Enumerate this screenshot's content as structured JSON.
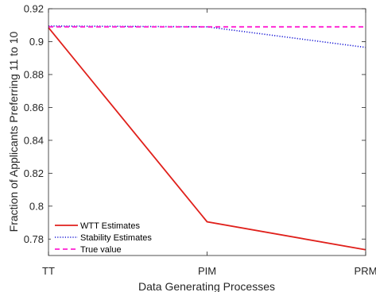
{
  "chart_data": {
    "type": "line",
    "title": "",
    "xlabel": "Data Generating Processes",
    "ylabel": "Fraction of Applicants Preferring 11 to 10",
    "categories": [
      "TT",
      "PIM",
      "PRM"
    ],
    "ylim": [
      0.77,
      0.92
    ],
    "yticks": [
      0.78,
      0.8,
      0.82,
      0.84,
      0.86,
      0.88,
      0.9,
      0.92
    ],
    "ytick_labels": [
      "0.78",
      "0.8",
      "0.82",
      "0.84",
      "0.86",
      "0.88",
      "0.9",
      "0.92"
    ],
    "grid": false,
    "legend_position": "bottom-left",
    "series": [
      {
        "name": "WTT Estimates",
        "values": [
          0.9085,
          0.7905,
          0.7735
        ],
        "color": "#e0201b",
        "style": "solid"
      },
      {
        "name": "Stability Estimates",
        "values": [
          0.9095,
          0.909,
          0.8965
        ],
        "color": "#1a1ad6",
        "style": "dotted"
      },
      {
        "name": "True value",
        "values": [
          0.909,
          0.909,
          0.909
        ],
        "color": "#ff1fd2",
        "style": "dashed"
      }
    ]
  }
}
